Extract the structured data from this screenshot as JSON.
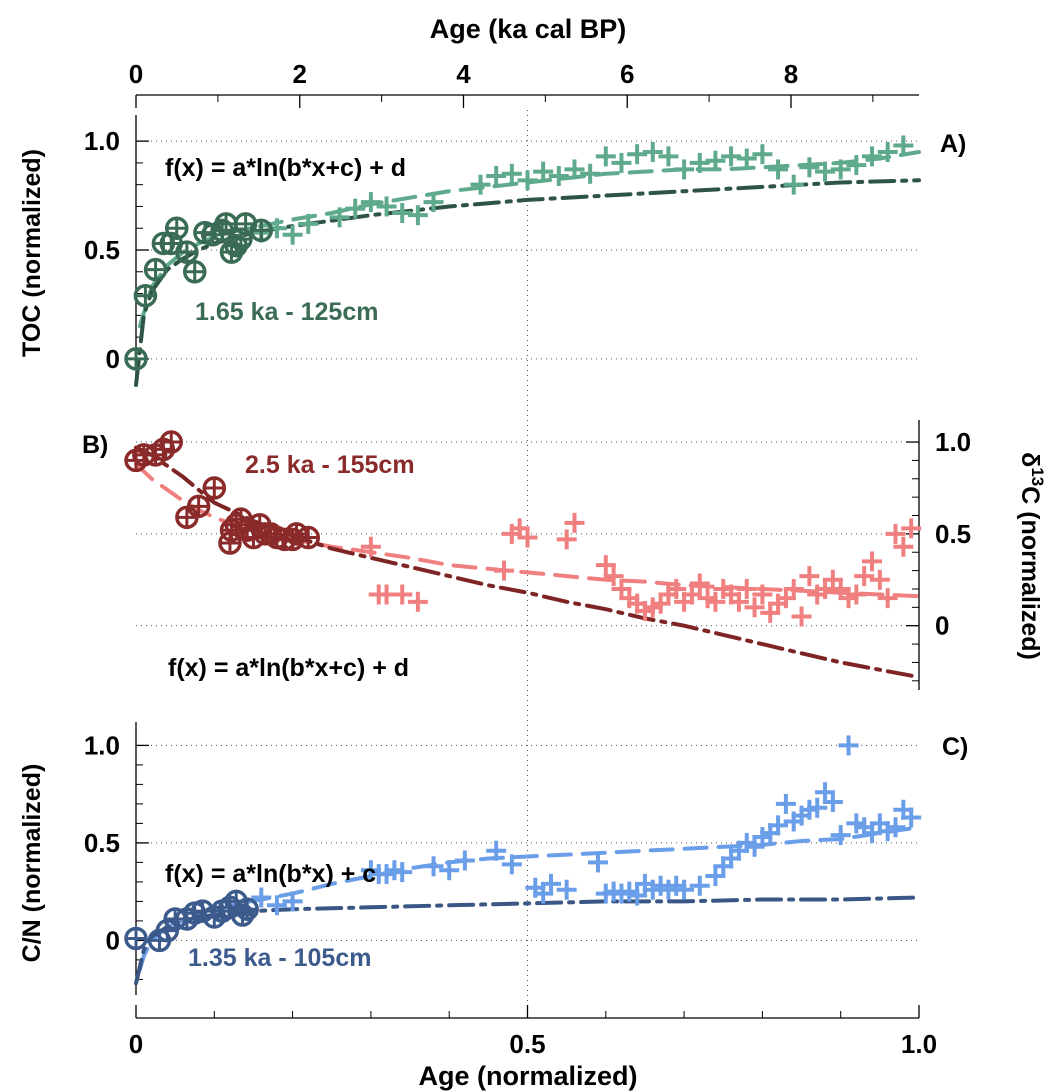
{
  "figure": {
    "top_axis_label": "Age (ka cal BP)",
    "bottom_axis_label": "Age (normalized)",
    "top_ticks": [
      "0",
      "2",
      "4",
      "6",
      "8"
    ],
    "bottom_ticks": [
      "0",
      "0.5",
      "1.0"
    ]
  },
  "chart_data": [
    {
      "type": "scatter",
      "panel_label": "A)",
      "ylabel": "TOC (normalized)",
      "yticks": [
        "1.0",
        "0.5",
        "0"
      ],
      "ylim": [
        -0.12,
        1.12
      ],
      "xlim": [
        0,
        1
      ],
      "equation": "f(x) = a*ln(b*x+c) + d",
      "annotation": "1.65 ka - 125cm",
      "colors": {
        "dark": "#3a6b55",
        "light": "#5faa8c",
        "fit": "#2e5446"
      },
      "circle_points": {
        "x": [
          0.0,
          0.012,
          0.025,
          0.035,
          0.045,
          0.052,
          0.065,
          0.075,
          0.088,
          0.098,
          0.11,
          0.115,
          0.122,
          0.128,
          0.134,
          0.14,
          0.16
        ],
        "y": [
          0.0,
          0.29,
          0.41,
          0.53,
          0.53,
          0.6,
          0.49,
          0.4,
          0.58,
          0.57,
          0.59,
          0.62,
          0.49,
          0.52,
          0.55,
          0.62,
          0.59
        ]
      },
      "plus_points": {
        "x": [
          0.16,
          0.18,
          0.2,
          0.22,
          0.26,
          0.28,
          0.3,
          0.32,
          0.34,
          0.36,
          0.38,
          0.44,
          0.46,
          0.48,
          0.5,
          0.52,
          0.54,
          0.56,
          0.58,
          0.6,
          0.62,
          0.64,
          0.66,
          0.68,
          0.7,
          0.72,
          0.74,
          0.76,
          0.78,
          0.8,
          0.82,
          0.84,
          0.86,
          0.88,
          0.9,
          0.92,
          0.94,
          0.96,
          0.98
        ],
        "y": [
          0.58,
          0.6,
          0.57,
          0.62,
          0.65,
          0.69,
          0.72,
          0.7,
          0.67,
          0.66,
          0.72,
          0.8,
          0.84,
          0.85,
          0.82,
          0.86,
          0.84,
          0.87,
          0.85,
          0.93,
          0.9,
          0.94,
          0.95,
          0.93,
          0.87,
          0.9,
          0.91,
          0.93,
          0.92,
          0.94,
          0.87,
          0.8,
          0.88,
          0.86,
          0.87,
          0.89,
          0.93,
          0.95,
          0.98
        ]
      },
      "fit_light": {
        "x": [
          0.005,
          0.02,
          0.04,
          0.06,
          0.08,
          0.1,
          0.13,
          0.16,
          0.2,
          0.25,
          0.3,
          0.35,
          0.4,
          0.45,
          0.5,
          0.55,
          0.6,
          0.65,
          0.7,
          0.75,
          0.8,
          0.85,
          0.9,
          0.95,
          1.0
        ],
        "y": [
          0.15,
          0.33,
          0.43,
          0.49,
          0.53,
          0.56,
          0.59,
          0.61,
          0.64,
          0.67,
          0.71,
          0.74,
          0.77,
          0.79,
          0.81,
          0.83,
          0.85,
          0.86,
          0.87,
          0.87,
          0.88,
          0.89,
          0.9,
          0.92,
          0.95
        ]
      },
      "fit_dark": {
        "x": [
          0.0,
          0.01,
          0.02,
          0.04,
          0.06,
          0.08,
          0.1,
          0.15,
          0.2,
          0.3,
          0.4,
          0.5,
          0.6,
          0.7,
          0.8,
          0.9,
          1.0
        ],
        "y": [
          -0.12,
          0.2,
          0.31,
          0.41,
          0.46,
          0.5,
          0.53,
          0.58,
          0.61,
          0.66,
          0.7,
          0.73,
          0.75,
          0.77,
          0.79,
          0.81,
          0.82
        ]
      }
    },
    {
      "type": "scatter",
      "panel_label": "B)",
      "ylabel": "δ¹³C (normalized)",
      "ylabel_parts": {
        "delta": "δ",
        "superscript": "13",
        "rest": "C (normalized)"
      },
      "yticks": [
        "1.0",
        "0.5",
        "0"
      ],
      "ylim": [
        -0.35,
        1.12
      ],
      "xlim": [
        0,
        1
      ],
      "equation": "f(x) = a*ln(b*x+c) + d",
      "annotation": "2.5 ka - 155cm",
      "colors": {
        "dark": "#8b2a2a",
        "light": "#f08080",
        "fit": "#7e2424"
      },
      "circle_points": {
        "x": [
          0.0,
          0.01,
          0.025,
          0.035,
          0.045,
          0.065,
          0.08,
          0.1,
          0.12,
          0.122,
          0.128,
          0.134,
          0.142,
          0.15,
          0.158,
          0.165,
          0.172,
          0.18,
          0.19,
          0.2,
          0.205,
          0.22
        ],
        "y": [
          0.9,
          0.93,
          0.93,
          0.96,
          1.0,
          0.59,
          0.65,
          0.75,
          0.45,
          0.52,
          0.55,
          0.58,
          0.52,
          0.48,
          0.55,
          0.5,
          0.5,
          0.48,
          0.47,
          0.47,
          0.5,
          0.48
        ]
      },
      "plus_points": {
        "x": [
          0.3,
          0.31,
          0.32,
          0.34,
          0.36,
          0.47,
          0.48,
          0.49,
          0.5,
          0.55,
          0.56,
          0.6,
          0.61,
          0.62,
          0.63,
          0.64,
          0.65,
          0.66,
          0.67,
          0.68,
          0.69,
          0.7,
          0.71,
          0.72,
          0.73,
          0.74,
          0.75,
          0.76,
          0.77,
          0.78,
          0.79,
          0.8,
          0.81,
          0.82,
          0.83,
          0.84,
          0.85,
          0.86,
          0.87,
          0.88,
          0.89,
          0.9,
          0.91,
          0.92,
          0.93,
          0.94,
          0.95,
          0.96,
          0.97,
          0.98,
          0.99
        ],
        "y": [
          0.43,
          0.17,
          0.17,
          0.17,
          0.13,
          0.3,
          0.5,
          0.53,
          0.48,
          0.47,
          0.56,
          0.33,
          0.27,
          0.2,
          0.15,
          0.12,
          0.08,
          0.1,
          0.12,
          0.17,
          0.2,
          0.13,
          0.17,
          0.23,
          0.15,
          0.13,
          0.2,
          0.17,
          0.13,
          0.2,
          0.1,
          0.17,
          0.07,
          0.12,
          0.15,
          0.2,
          0.05,
          0.27,
          0.17,
          0.2,
          0.25,
          0.2,
          0.15,
          0.17,
          0.27,
          0.35,
          0.25,
          0.15,
          0.5,
          0.43,
          0.53
        ]
      },
      "fit_light": {
        "x": [
          0.0,
          0.02,
          0.04,
          0.06,
          0.08,
          0.1,
          0.13,
          0.16,
          0.2,
          0.25,
          0.3,
          0.35,
          0.4,
          0.45,
          0.5,
          0.55,
          0.6,
          0.65,
          0.7,
          0.75,
          0.8,
          0.85,
          0.9,
          0.95,
          1.0
        ],
        "y": [
          0.88,
          0.8,
          0.74,
          0.68,
          0.63,
          0.59,
          0.54,
          0.5,
          0.47,
          0.43,
          0.4,
          0.37,
          0.33,
          0.31,
          0.29,
          0.27,
          0.25,
          0.24,
          0.22,
          0.21,
          0.2,
          0.19,
          0.18,
          0.17,
          0.16
        ]
      },
      "fit_dark": {
        "x": [
          0.0,
          0.02,
          0.04,
          0.06,
          0.08,
          0.1,
          0.15,
          0.2,
          0.25,
          0.3,
          0.35,
          0.4,
          0.45,
          0.5,
          0.55,
          0.6,
          0.65,
          0.7,
          0.75,
          0.8,
          0.85,
          0.9,
          0.95,
          1.0
        ],
        "y": [
          0.97,
          0.93,
          0.87,
          0.81,
          0.74,
          0.67,
          0.57,
          0.49,
          0.42,
          0.37,
          0.32,
          0.27,
          0.22,
          0.18,
          0.13,
          0.09,
          0.04,
          0.0,
          -0.05,
          -0.1,
          -0.15,
          -0.2,
          -0.24,
          -0.28
        ]
      }
    },
    {
      "type": "scatter",
      "panel_label": "C)",
      "ylabel": "C/N (normalized)",
      "yticks": [
        "1.0",
        "0.5",
        "0"
      ],
      "ylim": [
        -0.28,
        1.12
      ],
      "xlim": [
        0,
        1
      ],
      "equation": "f(x) = a*ln(b*x) + c",
      "annotation": "1.35 ka - 105cm",
      "colors": {
        "dark": "#3c5a8c",
        "light": "#6a9ee8",
        "fit": "#3a5685"
      },
      "circle_points": {
        "x": [
          0.0,
          0.03,
          0.04,
          0.05,
          0.065,
          0.075,
          0.085,
          0.1,
          0.11,
          0.12,
          0.128,
          0.136,
          0.142
        ],
        "y": [
          0.01,
          0.0,
          0.05,
          0.11,
          0.11,
          0.14,
          0.15,
          0.12,
          0.15,
          0.17,
          0.2,
          0.13,
          0.16
        ]
      },
      "plus_points": {
        "x": [
          0.16,
          0.18,
          0.2,
          0.3,
          0.31,
          0.32,
          0.33,
          0.34,
          0.38,
          0.4,
          0.42,
          0.46,
          0.48,
          0.51,
          0.52,
          0.53,
          0.55,
          0.59,
          0.6,
          0.61,
          0.62,
          0.63,
          0.64,
          0.65,
          0.66,
          0.67,
          0.68,
          0.69,
          0.7,
          0.72,
          0.74,
          0.75,
          0.76,
          0.77,
          0.78,
          0.79,
          0.8,
          0.81,
          0.82,
          0.83,
          0.84,
          0.85,
          0.86,
          0.87,
          0.88,
          0.89,
          0.9,
          0.91,
          0.92,
          0.93,
          0.94,
          0.95,
          0.96,
          0.97,
          0.98,
          0.99
        ],
        "y": [
          0.22,
          0.18,
          0.2,
          0.36,
          0.34,
          0.34,
          0.36,
          0.35,
          0.38,
          0.36,
          0.41,
          0.46,
          0.39,
          0.27,
          0.24,
          0.29,
          0.26,
          0.4,
          0.24,
          0.25,
          0.24,
          0.25,
          0.23,
          0.29,
          0.26,
          0.28,
          0.26,
          0.28,
          0.26,
          0.28,
          0.33,
          0.38,
          0.42,
          0.46,
          0.5,
          0.48,
          0.53,
          0.55,
          0.59,
          0.7,
          0.61,
          0.64,
          0.67,
          0.68,
          0.76,
          0.71,
          0.54,
          1.0,
          0.6,
          0.58,
          0.55,
          0.6,
          0.56,
          0.58,
          0.67,
          0.63
        ]
      },
      "fit_light": {
        "x": [
          0.005,
          0.01,
          0.02,
          0.04,
          0.06,
          0.08,
          0.1,
          0.13,
          0.16,
          0.2,
          0.25,
          0.3,
          0.35,
          0.4,
          0.45,
          0.5,
          0.55,
          0.6,
          0.65,
          0.7,
          0.75,
          0.8,
          0.85,
          0.9,
          0.95,
          1.0
        ],
        "y": [
          -0.15,
          -0.08,
          0.0,
          0.07,
          0.1,
          0.12,
          0.15,
          0.19,
          0.21,
          0.24,
          0.29,
          0.33,
          0.37,
          0.4,
          0.42,
          0.43,
          0.44,
          0.45,
          0.46,
          0.47,
          0.48,
          0.49,
          0.51,
          0.52,
          0.55,
          0.58
        ]
      },
      "fit_dark": {
        "x": [
          0.0,
          0.01,
          0.02,
          0.04,
          0.06,
          0.08,
          0.1,
          0.15,
          0.2,
          0.3,
          0.4,
          0.5,
          0.6,
          0.7,
          0.8,
          0.9,
          1.0
        ],
        "y": [
          -0.22,
          -0.05,
          0.02,
          0.07,
          0.1,
          0.12,
          0.13,
          0.15,
          0.16,
          0.17,
          0.18,
          0.19,
          0.2,
          0.2,
          0.21,
          0.21,
          0.22
        ]
      }
    }
  ]
}
